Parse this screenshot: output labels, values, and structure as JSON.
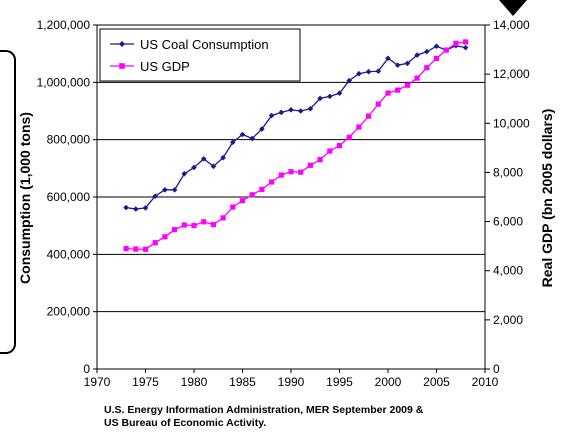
{
  "chart_data": {
    "type": "line",
    "x": [
      1973,
      1974,
      1975,
      1976,
      1977,
      1978,
      1979,
      1980,
      1981,
      1982,
      1983,
      1984,
      1985,
      1986,
      1987,
      1988,
      1989,
      1990,
      1991,
      1992,
      1993,
      1994,
      1995,
      1996,
      1997,
      1998,
      1999,
      2000,
      2001,
      2002,
      2003,
      2004,
      2005,
      2006,
      2007,
      2008
    ],
    "series": [
      {
        "name": "US Coal Consumption",
        "axis": "left",
        "color": "#1a1a8c",
        "marker": "diamond",
        "values": [
          563000,
          558000,
          562000,
          603000,
          625000,
          625000,
          681000,
          703000,
          733000,
          707000,
          737000,
          791000,
          818000,
          804000,
          837000,
          884000,
          895000,
          904000,
          900000,
          908000,
          944000,
          951000,
          962000,
          1006000,
          1030000,
          1037000,
          1039000,
          1084000,
          1060000,
          1066000,
          1095000,
          1107000,
          1126000,
          1112000,
          1128000,
          1121000
        ]
      },
      {
        "name": "US GDP",
        "axis": "right",
        "color": "#ff00ff",
        "marker": "square",
        "values": [
          4900,
          4880,
          4870,
          5140,
          5380,
          5670,
          5860,
          5840,
          5990,
          5880,
          6150,
          6590,
          6850,
          7090,
          7310,
          7610,
          7890,
          8030,
          8010,
          8290,
          8520,
          8870,
          9090,
          9430,
          9850,
          10290,
          10780,
          11230,
          11350,
          11550,
          11840,
          12260,
          12640,
          12980,
          13250,
          13310
        ]
      }
    ],
    "xlim": [
      1970,
      2010
    ],
    "x_ticks": [
      "1970",
      "1975",
      "1980",
      "1985",
      "1990",
      "1995",
      "2000",
      "2005",
      "2010"
    ],
    "ylim_left": [
      0,
      1200000
    ],
    "y_ticks_left": [
      "0",
      "200,000",
      "400,000",
      "600,000",
      "800,000",
      "1,000,000",
      "1,200,000"
    ],
    "ylim_right": [
      0,
      14000
    ],
    "y_ticks_right": [
      "0",
      "2,000",
      "4,000",
      "6,000",
      "8,000",
      "10,000",
      "12,000",
      "14,000"
    ],
    "ylabel_left": "Consumption (1,000 tons)",
    "ylabel_right": "Real GDP (bn 2005 dollars)",
    "grid": "horizontal",
    "legend_placement": "top-left"
  },
  "source_line1": "U.S. Energy Information Administration, MER September 2009 &",
  "source_line2": "US Bureau of Economic Activity."
}
